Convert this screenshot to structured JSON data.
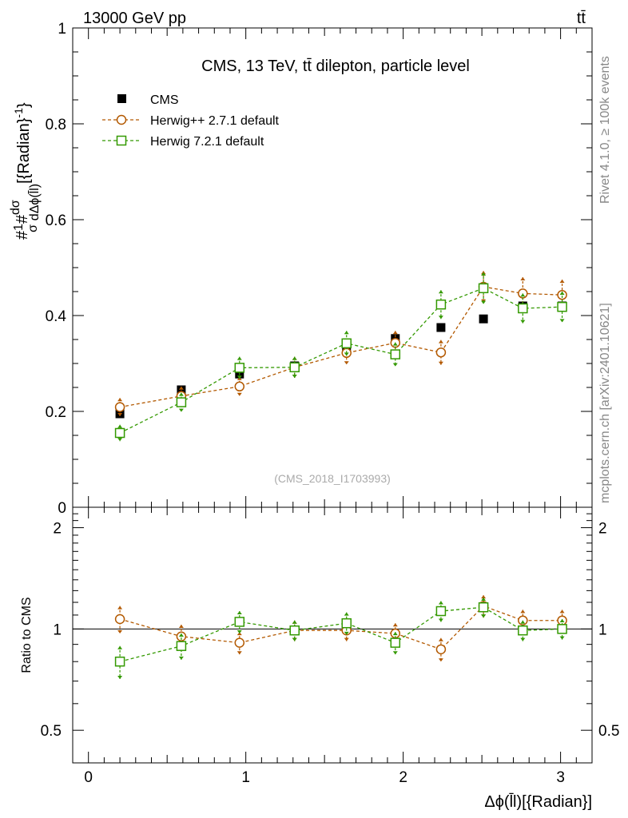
{
  "header": {
    "energy_label": "13000 GeV pp",
    "process_label": "tt̄"
  },
  "side_labels": {
    "rivet": "Rivet 4.1.0, ≥ 100k events",
    "mcplots": "mcplots.cern.ch [arXiv:2401.10621]"
  },
  "chart_data": [
    {
      "type": "line",
      "panel": "main",
      "title": "CMS, 13 TeV, tt̄ dilepton, particle level",
      "watermark": "(CMS_2018_I1703993)",
      "ylabel": {
        "prefix": "#",
        "frac1_num": "1",
        "hash": "#",
        "frac1_den": "σ",
        "frac2_num": "dσ",
        "frac2_den": "dΔϕ(l̄l)",
        "units": "[{Radian}",
        "exp": "-1",
        "close": "}"
      },
      "xlim": [
        -0.1,
        3.2
      ],
      "ylim": [
        0,
        1
      ],
      "yticks": [
        "0",
        "0.2",
        "0.4",
        "0.6",
        "0.8",
        "1"
      ],
      "ytick_values": [
        0,
        0.2,
        0.4,
        0.6,
        0.8,
        1
      ],
      "x": [
        0.2,
        0.59,
        0.96,
        1.31,
        1.64,
        1.95,
        2.24,
        2.51,
        2.76,
        3.01
      ],
      "series": [
        {
          "name": "CMS",
          "style": "data",
          "color": "#000000",
          "values": [
            0.195,
            0.245,
            0.278,
            0.295,
            0.328,
            0.352,
            0.375,
            0.393,
            0.42,
            0.42
          ],
          "errors": [
            0.008,
            0.008,
            0.008,
            0.008,
            0.008,
            0.008,
            0.008,
            0.008,
            0.008,
            0.008
          ]
        },
        {
          "name": "Herwig++ 2.7.1 default",
          "style": "circle",
          "color": "#b35900",
          "values": [
            0.209,
            0.232,
            0.252,
            0.292,
            0.322,
            0.343,
            0.323,
            0.46,
            0.446,
            0.443
          ],
          "errors": [
            0.019,
            0.02,
            0.02,
            0.022,
            0.024,
            0.025,
            0.026,
            0.033,
            0.034,
            0.032
          ]
        },
        {
          "name": "Herwig 7.2.1 default",
          "style": "square",
          "color": "#339900",
          "values": [
            0.155,
            0.219,
            0.291,
            0.292,
            0.342,
            0.319,
            0.423,
            0.457,
            0.415,
            0.418
          ],
          "errors": [
            0.017,
            0.02,
            0.023,
            0.022,
            0.026,
            0.025,
            0.03,
            0.033,
            0.031,
            0.032
          ]
        }
      ]
    },
    {
      "type": "line",
      "panel": "ratio",
      "ylabel": "Ratio to CMS",
      "xlabel": "Δϕ(l̄l)[{Radian}]",
      "xlim": [
        -0.1,
        3.2
      ],
      "ylim": [
        0.4,
        2.3
      ],
      "scale": "log",
      "xticks": [
        "0",
        "1",
        "2",
        "3"
      ],
      "xtick_values": [
        0,
        1,
        2,
        3
      ],
      "yticks": [
        "0.5",
        "1",
        "2"
      ],
      "ytick_values": [
        0.5,
        1,
        2
      ],
      "x": [
        0.2,
        0.59,
        0.96,
        1.31,
        1.64,
        1.95,
        2.24,
        2.51,
        2.76,
        3.01
      ],
      "series": [
        {
          "name": "Herwig++ 2.7.1 default",
          "style": "circle",
          "color": "#b35900",
          "values": [
            1.07,
            0.95,
            0.91,
            0.99,
            0.99,
            0.97,
            0.87,
            1.17,
            1.06,
            1.06
          ],
          "errors": [
            0.1,
            0.08,
            0.07,
            0.07,
            0.07,
            0.07,
            0.07,
            0.09,
            0.08,
            0.08
          ]
        },
        {
          "name": "Herwig 7.2.1 default",
          "style": "square",
          "color": "#339900",
          "values": [
            0.8,
            0.89,
            1.05,
            0.99,
            1.04,
            0.91,
            1.13,
            1.16,
            0.99,
            1.0
          ],
          "errors": [
            0.09,
            0.08,
            0.08,
            0.07,
            0.08,
            0.07,
            0.08,
            0.08,
            0.07,
            0.07
          ]
        }
      ]
    }
  ]
}
